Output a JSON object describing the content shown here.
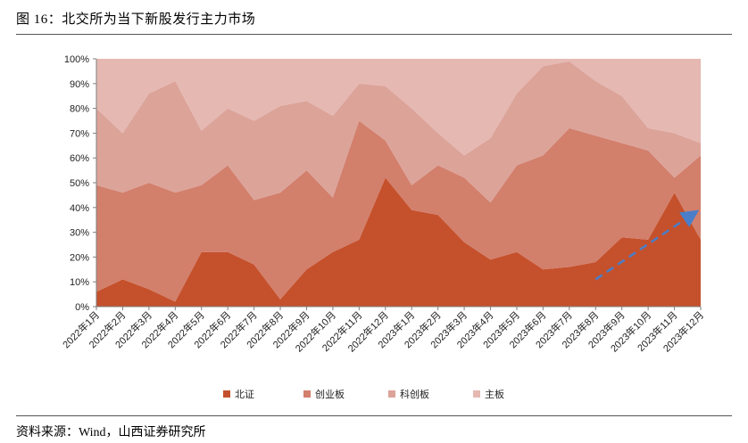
{
  "header": {
    "title": "图 16：北交所为当下新股发行主力市场"
  },
  "footer": {
    "source": "资料来源：Wind，山西证券研究所"
  },
  "chart_data": {
    "type": "area",
    "stacked": true,
    "percent": true,
    "categories": [
      "2022年1月",
      "2022年2月",
      "2022年3月",
      "2022年4月",
      "2022年5月",
      "2022年6月",
      "2022年7月",
      "2022年8月",
      "2022年9月",
      "2022年10月",
      "2022年11月",
      "2022年12月",
      "2023年1月",
      "2023年2月",
      "2023年3月",
      "2023年4月",
      "2023年5月",
      "2023年6月",
      "2023年7月",
      "2023年8月",
      "2023年9月",
      "2023年10月",
      "2023年11月",
      "2023年12月"
    ],
    "ylim": [
      0,
      100
    ],
    "yticks": [
      "0%",
      "10%",
      "20%",
      "30%",
      "40%",
      "50%",
      "60%",
      "70%",
      "80%",
      "90%",
      "100%"
    ],
    "series": [
      {
        "name": "北证",
        "color": "#c5512c",
        "values": [
          6,
          11,
          7,
          2,
          22,
          22,
          17,
          3,
          15,
          22,
          27,
          52,
          39,
          37,
          26,
          19,
          22,
          15,
          16,
          18,
          28,
          27,
          46,
          27
        ]
      },
      {
        "name": "创业板",
        "color": "#d27f6c",
        "values": [
          43,
          35,
          43,
          44,
          27,
          35,
          26,
          43,
          40,
          22,
          48,
          15,
          10,
          20,
          26,
          23,
          35,
          46,
          56,
          51,
          38,
          36,
          6,
          34
        ]
      },
      {
        "name": "科创板",
        "color": "#dca399",
        "values": [
          31,
          24,
          36,
          45,
          22,
          23,
          32,
          35,
          28,
          33,
          15,
          22,
          31,
          13,
          9,
          26,
          29,
          36,
          27,
          22,
          19,
          9,
          18,
          5
        ]
      },
      {
        "name": "主板",
        "color": "#e5b8b2",
        "values": [
          20,
          30,
          14,
          9,
          29,
          20,
          25,
          19,
          17,
          23,
          10,
          11,
          20,
          30,
          39,
          32,
          14,
          3,
          1,
          9,
          15,
          28,
          30,
          34
        ]
      }
    ],
    "trend_arrow": {
      "color": "#4a7ec8",
      "from": {
        "x": "2023年8月",
        "y": 11
      },
      "to": {
        "x": "2023年12月",
        "y": 38
      }
    },
    "legend_position": "bottom",
    "grid": false
  }
}
